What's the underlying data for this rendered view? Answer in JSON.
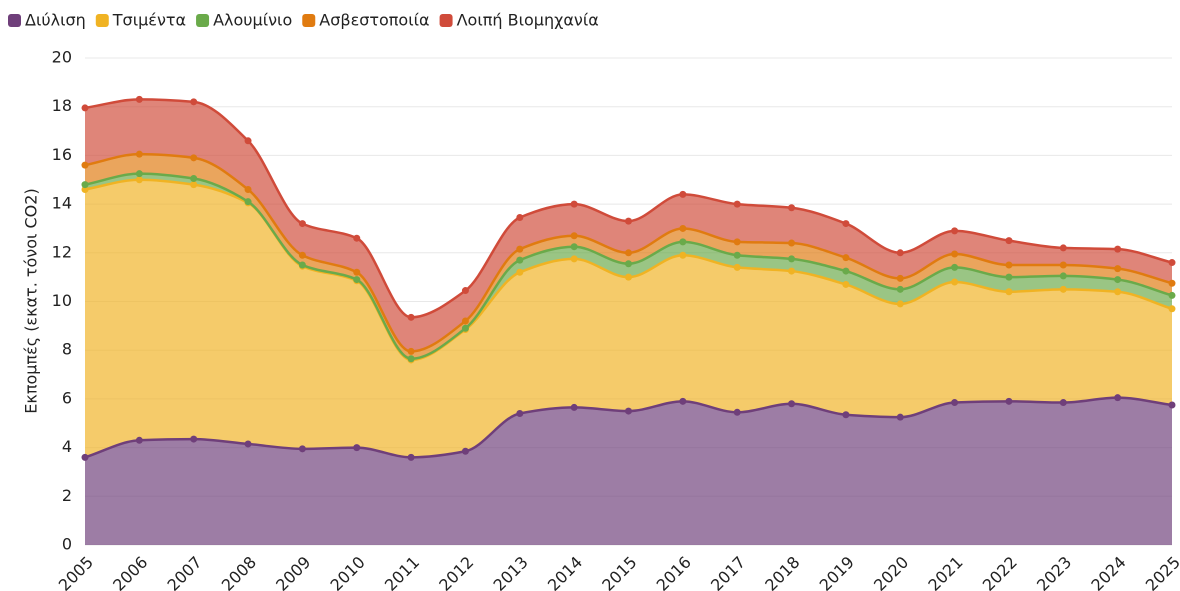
{
  "chart_data": {
    "type": "stacked_area",
    "y_label": "Εκπομπές (εκατ. τόνοι CO2)",
    "categories": [
      "2005",
      "2006",
      "2007",
      "2008",
      "2009",
      "2010",
      "2011",
      "2012",
      "2013",
      "2014",
      "2015",
      "2016",
      "2017",
      "2018",
      "2019",
      "2020",
      "2021",
      "2022",
      "2023",
      "2024",
      "2025"
    ],
    "series": [
      {
        "name": "Διύλιση",
        "color": "#6f3f7a",
        "values": [
          3.6,
          4.3,
          4.35,
          4.15,
          3.95,
          4.0,
          3.6,
          3.85,
          5.4,
          5.65,
          5.5,
          5.9,
          5.45,
          5.8,
          5.35,
          5.25,
          5.85,
          5.9,
          5.85,
          6.05,
          5.75
        ]
      },
      {
        "name": "Τσιμέντα",
        "color": "#f0b323",
        "values": [
          11.0,
          10.7,
          10.45,
          9.9,
          7.5,
          6.85,
          4.0,
          5.0,
          5.8,
          6.1,
          5.5,
          6.0,
          5.95,
          5.45,
          5.35,
          4.65,
          4.95,
          4.5,
          4.65,
          4.35,
          3.95
        ]
      },
      {
        "name": "Αλουμίνιο",
        "color": "#6aaa4a",
        "values": [
          0.2,
          0.25,
          0.25,
          0.05,
          0.05,
          0.05,
          0.05,
          0.05,
          0.5,
          0.5,
          0.55,
          0.55,
          0.5,
          0.5,
          0.55,
          0.6,
          0.6,
          0.6,
          0.55,
          0.5,
          0.55
        ]
      },
      {
        "name": "Ασβεστοποιία",
        "color": "#e07b10",
        "values": [
          0.8,
          0.8,
          0.85,
          0.5,
          0.4,
          0.3,
          0.3,
          0.3,
          0.45,
          0.45,
          0.45,
          0.55,
          0.55,
          0.65,
          0.55,
          0.45,
          0.55,
          0.5,
          0.45,
          0.45,
          0.5
        ]
      },
      {
        "name": "Λοιπή Βιομηχανία",
        "color": "#d04b3a",
        "values": [
          2.35,
          2.25,
          2.3,
          2.0,
          1.3,
          1.4,
          1.4,
          1.25,
          1.3,
          1.3,
          1.3,
          1.4,
          1.55,
          1.45,
          1.4,
          1.05,
          0.95,
          1.0,
          0.7,
          0.8,
          0.85
        ]
      }
    ],
    "ylim": [
      0,
      20
    ],
    "yticks": [
      0,
      2,
      4,
      6,
      8,
      10,
      12,
      14,
      16,
      18,
      20
    ],
    "grid": true,
    "legend": "top-left"
  }
}
